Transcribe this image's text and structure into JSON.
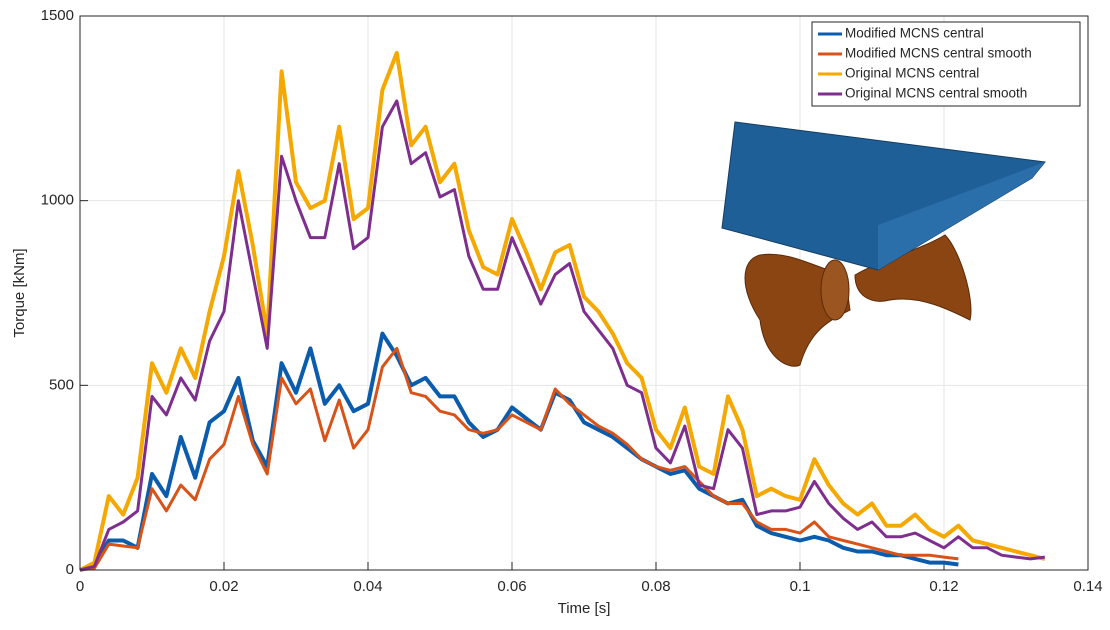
{
  "chart_data": {
    "type": "line",
    "x_label": "Time [s]",
    "y_label": "Torque [kNm]",
    "x": [
      0,
      0.002,
      0.004,
      0.006,
      0.008,
      0.01,
      0.012,
      0.014,
      0.016,
      0.018,
      0.02,
      0.022,
      0.024,
      0.026,
      0.028,
      0.03,
      0.032,
      0.034,
      0.036,
      0.038,
      0.04,
      0.042,
      0.044,
      0.046,
      0.048,
      0.05,
      0.052,
      0.054,
      0.056,
      0.058,
      0.06,
      0.062,
      0.064,
      0.066,
      0.068,
      0.07,
      0.072,
      0.074,
      0.076,
      0.078,
      0.08,
      0.082,
      0.084,
      0.086,
      0.088,
      0.09,
      0.092,
      0.094,
      0.096,
      0.098,
      0.1,
      0.102,
      0.104,
      0.106,
      0.108,
      0.11,
      0.112,
      0.114,
      0.116,
      0.118,
      0.12,
      0.122,
      0.124,
      0.126,
      0.128,
      0.13,
      0.132,
      0.134
    ],
    "series": [
      {
        "name": "Modified MCNS central",
        "color": "#0b5cad",
        "width": 4,
        "values": [
          0,
          10,
          80,
          80,
          60,
          260,
          200,
          360,
          250,
          400,
          430,
          520,
          350,
          280,
          560,
          480,
          600,
          450,
          500,
          430,
          450,
          640,
          580,
          500,
          520,
          470,
          470,
          400,
          360,
          380,
          440,
          410,
          380,
          480,
          460,
          400,
          380,
          360,
          330,
          300,
          280,
          260,
          270,
          220,
          200,
          180,
          190,
          120,
          100,
          90,
          80,
          90,
          80,
          60,
          50,
          50,
          40,
          40,
          30,
          20,
          20,
          15,
          null,
          null,
          null,
          null,
          null,
          null
        ]
      },
      {
        "name": "Modified MCNS central smooth",
        "color": "#d95319",
        "width": 3,
        "values": [
          0,
          5,
          70,
          65,
          60,
          220,
          160,
          230,
          190,
          300,
          340,
          470,
          340,
          260,
          520,
          450,
          490,
          350,
          460,
          330,
          380,
          550,
          600,
          480,
          470,
          430,
          420,
          380,
          370,
          380,
          420,
          400,
          380,
          490,
          450,
          420,
          390,
          370,
          340,
          300,
          280,
          270,
          280,
          240,
          200,
          180,
          180,
          130,
          110,
          110,
          100,
          130,
          90,
          80,
          70,
          60,
          50,
          40,
          40,
          40,
          35,
          30,
          null,
          null,
          null,
          null,
          null,
          null
        ]
      },
      {
        "name": "Original MCNS central",
        "color": "#f5a800",
        "width": 4,
        "values": [
          0,
          20,
          200,
          150,
          250,
          560,
          480,
          600,
          520,
          700,
          850,
          1080,
          880,
          640,
          1350,
          1050,
          980,
          1000,
          1200,
          950,
          980,
          1300,
          1400,
          1150,
          1200,
          1050,
          1100,
          920,
          820,
          800,
          950,
          860,
          760,
          860,
          880,
          740,
          700,
          640,
          560,
          520,
          380,
          330,
          440,
          280,
          260,
          470,
          380,
          200,
          220,
          200,
          190,
          300,
          230,
          180,
          150,
          180,
          120,
          120,
          150,
          110,
          90,
          120,
          80,
          70,
          60,
          50,
          40,
          30
        ]
      },
      {
        "name": "Original MCNS central smooth",
        "color": "#7e2f8e",
        "width": 3,
        "values": [
          0,
          10,
          110,
          130,
          160,
          470,
          420,
          520,
          460,
          620,
          700,
          1000,
          800,
          600,
          1120,
          1000,
          900,
          900,
          1100,
          870,
          900,
          1200,
          1270,
          1100,
          1130,
          1010,
          1030,
          850,
          760,
          760,
          900,
          810,
          720,
          800,
          830,
          700,
          650,
          600,
          500,
          480,
          330,
          290,
          390,
          230,
          220,
          380,
          330,
          150,
          160,
          160,
          170,
          240,
          180,
          140,
          110,
          130,
          90,
          90,
          100,
          80,
          60,
          90,
          60,
          60,
          40,
          35,
          30,
          35
        ]
      }
    ],
    "xlim": [
      0,
      0.14
    ],
    "xticks": [
      0,
      0.02,
      0.04,
      0.06,
      0.08,
      0.1,
      0.12,
      0.14
    ],
    "ylim": [
      0,
      1500
    ],
    "yticks": [
      0,
      500,
      1000,
      1500
    ],
    "grid": true,
    "legend": "top-right"
  }
}
